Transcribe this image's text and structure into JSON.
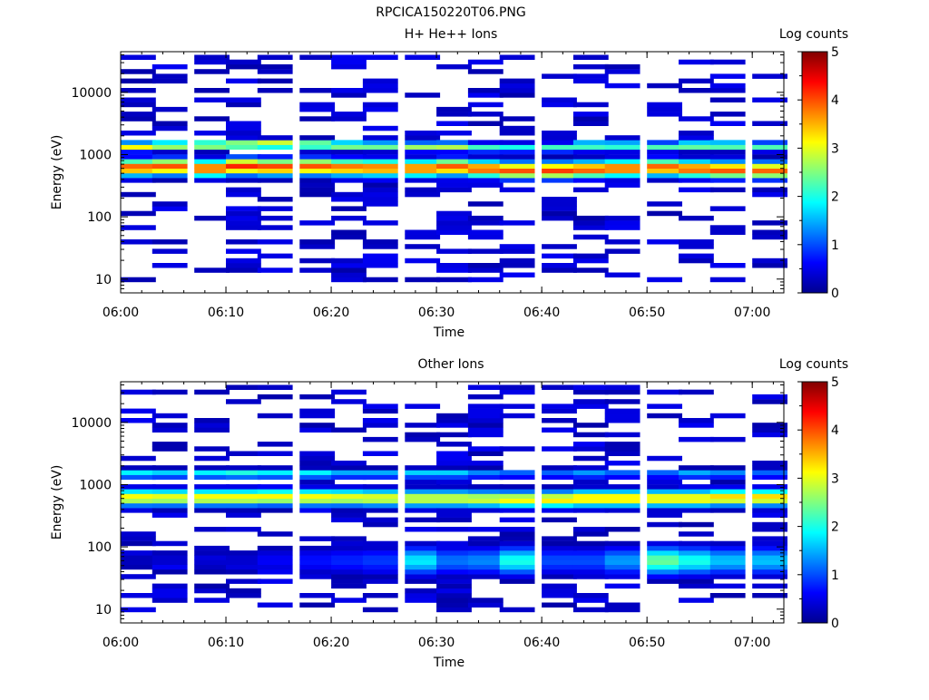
{
  "figure": {
    "title": "RPCICA150220T06.PNG"
  },
  "chart_data": [
    {
      "type": "heatmap",
      "title": "H+ He++ Ions",
      "xlabel": "Time",
      "ylabel": "Energy (eV)",
      "x_ticks": [
        "06:00",
        "06:10",
        "06:20",
        "06:30",
        "06:40",
        "06:50",
        "07:00"
      ],
      "xlim": [
        "06:00",
        "07:03"
      ],
      "y_scale": "log",
      "ylim": [
        6,
        45000
      ],
      "y_ticks": [
        "10",
        "100",
        "1000",
        "10000"
      ],
      "colorbar": {
        "label": "Log counts",
        "range": [
          0,
          5
        ],
        "ticks": [
          "0",
          "1",
          "2",
          "3",
          "4",
          "5"
        ]
      },
      "time_bins": [
        "06:00",
        "06:03",
        "06:07",
        "06:10",
        "06:13",
        "06:17",
        "06:20",
        "06:23",
        "06:27",
        "06:30",
        "06:33",
        "06:36",
        "06:40",
        "06:43",
        "06:46",
        "06:50",
        "06:53",
        "06:56",
        "07:00"
      ],
      "core_band": {
        "peak_energy_eV": [
          620,
          640,
          600,
          650,
          630,
          640,
          620,
          610,
          600,
          630,
          590,
          560,
          560,
          580,
          600,
          620,
          590,
          570,
          560
        ],
        "peak_log_counts": [
          4.0,
          4.0,
          4.0,
          4.2,
          4.1,
          4.0,
          3.9,
          3.9,
          3.9,
          4.0,
          4.0,
          4.0,
          4.1,
          4.0,
          4.0,
          4.0,
          4.0,
          4.0,
          3.9
        ]
      },
      "secondary_band": {
        "peak_energy_eV": [
          1350,
          1400,
          1420,
          1450,
          1480,
          1450,
          1400,
          1380,
          1350,
          1350,
          1300,
          1300,
          1300,
          1400,
          1400,
          1350,
          1400,
          1400,
          1350
        ],
        "peak_log_counts": [
          3.2,
          3.0,
          3.1,
          3.2,
          3.3,
          3.0,
          2.8,
          2.6,
          2.7,
          2.8,
          2.2,
          2.0,
          2.2,
          2.5,
          2.4,
          2.3,
          2.7,
          2.6,
          2.3
        ]
      }
    },
    {
      "type": "heatmap",
      "title": "Other Ions",
      "xlabel": "Time",
      "ylabel": "Energy (eV)",
      "x_ticks": [
        "06:00",
        "06:10",
        "06:20",
        "06:30",
        "06:40",
        "06:50",
        "07:00"
      ],
      "xlim": [
        "06:00",
        "07:03"
      ],
      "y_scale": "log",
      "ylim": [
        6,
        45000
      ],
      "y_ticks": [
        "10",
        "100",
        "1000",
        "10000"
      ],
      "colorbar": {
        "label": "Log counts",
        "range": [
          0,
          5
        ],
        "ticks": [
          "0",
          "1",
          "2",
          "3",
          "4",
          "5"
        ]
      },
      "time_bins": [
        "06:00",
        "06:03",
        "06:07",
        "06:10",
        "06:13",
        "06:17",
        "06:20",
        "06:23",
        "06:27",
        "06:30",
        "06:33",
        "06:36",
        "06:40",
        "06:43",
        "06:46",
        "06:50",
        "06:53",
        "06:56",
        "07:00"
      ],
      "core_band": {
        "peak_energy_eV": [
          620,
          620,
          620,
          620,
          630,
          620,
          620,
          610,
          600,
          600,
          590,
          580,
          580,
          600,
          600,
          600,
          600,
          620,
          620
        ],
        "peak_log_counts": [
          3.2,
          3.1,
          3.2,
          3.2,
          3.2,
          3.2,
          3.1,
          3.1,
          3.0,
          3.0,
          3.0,
          3.2,
          3.3,
          3.4,
          3.4,
          3.3,
          3.3,
          3.4,
          3.4
        ]
      },
      "secondary_band": {
        "peak_energy_eV": [
          1500,
          1500,
          1500,
          1500,
          1500,
          1500,
          1500,
          1500,
          1500,
          1500,
          1500,
          1500,
          1500,
          1500,
          1500,
          1500,
          1500,
          1500,
          1500
        ],
        "peak_log_counts": [
          2.0,
          1.8,
          2.0,
          2.2,
          2.0,
          2.0,
          1.6,
          1.6,
          1.8,
          1.8,
          1.4,
          1.2,
          1.2,
          1.5,
          1.2,
          1.2,
          1.6,
          1.4,
          1.2
        ]
      },
      "low_energy_band": {
        "peak_energy_eV": [
          60,
          60,
          60,
          60,
          60,
          60,
          60,
          60,
          60,
          60,
          60,
          60,
          60,
          60,
          60,
          60,
          60,
          60,
          60
        ],
        "peak_log_counts": [
          0.3,
          0.4,
          0.4,
          0.4,
          0.6,
          0.7,
          0.8,
          0.9,
          1.8,
          1.2,
          1.3,
          2.0,
          1.0,
          1.0,
          1.4,
          2.4,
          2.0,
          1.6,
          1.6
        ]
      }
    }
  ]
}
